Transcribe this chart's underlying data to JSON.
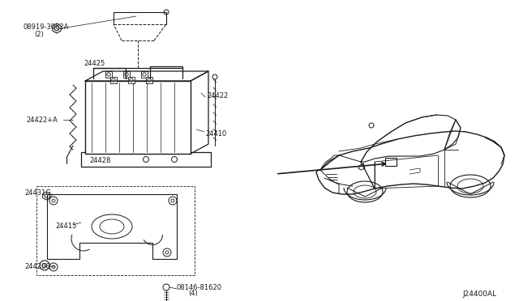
{
  "bg_color": "#ffffff",
  "line_color": "#1a1a1a",
  "diagram_code": "J24400AL",
  "label_fontsize": 6.0,
  "parts_labels": {
    "08919_3062A": "08919-3062A\n(2)",
    "24425": "24425",
    "24422": "24422",
    "24422A": "24422+A",
    "24410": "24410",
    "24428": "24428",
    "24431G": "24431G",
    "24415": "24415",
    "24420C": "24420C",
    "08146_81620": "08146-81620\n(4)"
  }
}
